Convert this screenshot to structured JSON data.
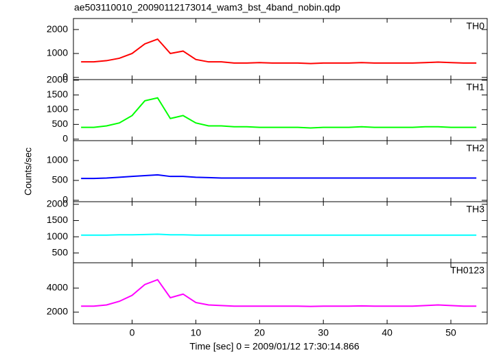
{
  "title": "ae503110010_20090112173014_wam3_bst_4band_nobin.qdp",
  "x_label": "Time [sec] 0 = 2009/01/12 17:30:14.866",
  "y_label": "Counts/sec",
  "xlim": [
    -9.2,
    55.7
  ],
  "xticks": [
    0,
    10,
    20,
    30,
    40,
    50
  ],
  "x": [
    -8,
    -6,
    -4,
    -2,
    0,
    2,
    4,
    6,
    8,
    10,
    12,
    14,
    16,
    18,
    20,
    22,
    24,
    26,
    28,
    30,
    32,
    34,
    36,
    38,
    40,
    42,
    44,
    46,
    48,
    50,
    52,
    54
  ],
  "chart_data": [
    {
      "type": "line",
      "label": "TH0",
      "color": "#ff0000",
      "ylim": [
        -90,
        2460
      ],
      "yticks": [
        0,
        1000,
        2000
      ],
      "values": [
        650,
        650,
        700,
        800,
        1000,
        1400,
        1600,
        1000,
        1100,
        750,
        650,
        650,
        600,
        600,
        620,
        600,
        600,
        600,
        580,
        600,
        600,
        600,
        620,
        600,
        600,
        600,
        600,
        620,
        640,
        620,
        600,
        600
      ]
    },
    {
      "type": "line",
      "label": "TH1",
      "color": "#00ff00",
      "ylim": [
        -50,
        2020
      ],
      "yticks": [
        0,
        500,
        1000,
        1500,
        2000
      ],
      "values": [
        400,
        400,
        450,
        550,
        800,
        1300,
        1400,
        700,
        800,
        550,
        450,
        450,
        420,
        420,
        400,
        400,
        400,
        400,
        380,
        400,
        400,
        400,
        420,
        400,
        400,
        400,
        400,
        420,
        420,
        400,
        400,
        400
      ]
    },
    {
      "type": "line",
      "label": "TH2",
      "color": "#0000ff",
      "ylim": [
        -35,
        1500
      ],
      "yticks": [
        0,
        500,
        1000
      ],
      "values": [
        550,
        550,
        560,
        580,
        600,
        620,
        640,
        600,
        600,
        580,
        570,
        560,
        560,
        560,
        560,
        560,
        560,
        560,
        560,
        560,
        560,
        560,
        560,
        560,
        560,
        560,
        560,
        560,
        560,
        560,
        560,
        560
      ]
    },
    {
      "type": "line",
      "label": "TH3",
      "color": "#00ffff",
      "ylim": [
        200,
        2080
      ],
      "yticks": [
        500,
        1000,
        1500,
        2000
      ],
      "values": [
        1050,
        1050,
        1050,
        1060,
        1060,
        1070,
        1080,
        1060,
        1060,
        1050,
        1050,
        1050,
        1050,
        1050,
        1050,
        1050,
        1050,
        1050,
        1050,
        1050,
        1050,
        1050,
        1050,
        1050,
        1050,
        1050,
        1050,
        1050,
        1050,
        1050,
        1050,
        1050
      ]
    },
    {
      "type": "line",
      "label": "TH0123",
      "color": "#ff00ff",
      "ylim": [
        1030,
        6110
      ],
      "yticks": [
        2000,
        4000
      ],
      "values": [
        2500,
        2500,
        2600,
        2900,
        3400,
        4300,
        4700,
        3200,
        3500,
        2800,
        2600,
        2550,
        2500,
        2500,
        2500,
        2500,
        2500,
        2500,
        2480,
        2500,
        2500,
        2500,
        2520,
        2500,
        2500,
        2500,
        2500,
        2550,
        2600,
        2550,
        2500,
        2500
      ]
    }
  ]
}
